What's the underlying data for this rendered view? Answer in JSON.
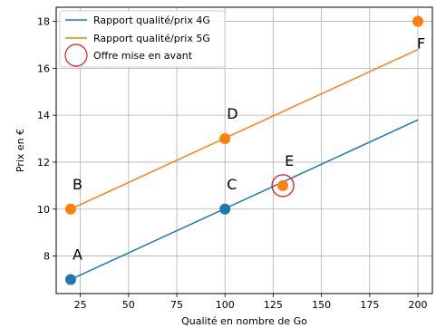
{
  "chart_data": {
    "type": "scatter",
    "xlabel": "Qualité en nombre de Go",
    "ylabel": "Prix en €",
    "xlim": [
      12.5,
      207.5
    ],
    "ylim": [
      6.4,
      18.6
    ],
    "xticks": [
      25,
      50,
      75,
      100,
      125,
      150,
      175,
      200
    ],
    "yticks": [
      8,
      10,
      12,
      14,
      16,
      18
    ],
    "grid": true,
    "legend_position": "top-left",
    "series": [
      {
        "name": "Rapport qualité/prix 4G",
        "kind": "line",
        "color": "#1f77b4",
        "x": [
          20,
          200
        ],
        "y": [
          7,
          13.8
        ]
      },
      {
        "name": "Rapport qualité/prix 5G",
        "kind": "line",
        "color": "#ff7f0e",
        "x": [
          20,
          200
        ],
        "y": [
          10,
          16.8
        ]
      },
      {
        "name": "Offre mise en avant",
        "kind": "highlight",
        "color": "#e31a1c",
        "x": [
          130
        ],
        "y": [
          11
        ]
      }
    ],
    "points": [
      {
        "label": "A",
        "x": 20,
        "y": 7,
        "color": "#1f77b4"
      },
      {
        "label": "B",
        "x": 20,
        "y": 10,
        "color": "#ff7f0e"
      },
      {
        "label": "C",
        "x": 100,
        "y": 10,
        "color": "#1f77b4"
      },
      {
        "label": "D",
        "x": 100,
        "y": 13,
        "color": "#ff7f0e"
      },
      {
        "label": "E",
        "x": 130,
        "y": 11,
        "color": "#ff7f0e"
      },
      {
        "label": "F",
        "x": 200,
        "y": 18,
        "color": "#ff7f0e"
      }
    ]
  }
}
